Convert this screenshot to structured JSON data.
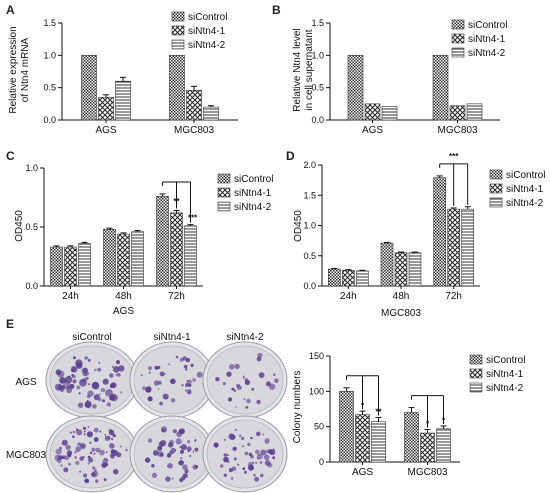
{
  "panels": {
    "A": "A",
    "B": "B",
    "C": "C",
    "D": "D",
    "E": "E"
  },
  "series_names": [
    "siControl",
    "siNtn4-1",
    "siNtn4-2"
  ],
  "colors": {
    "ink": "#111111",
    "dish": "#cfcfd3",
    "colony": "#5a3e8c"
  },
  "plates": {
    "column_labels": [
      "siControl",
      "siNtn4-1",
      "siNtn4-2"
    ],
    "row_labels": [
      "AGS",
      "MGC803"
    ]
  },
  "chart_data": [
    {
      "id": "A",
      "type": "bar",
      "ylabel": "Relative expression of Ntn4 mRNA",
      "ylim": [
        0,
        1.5
      ],
      "yticks": [
        "0.0",
        "0.5",
        "1.0",
        "1.5"
      ],
      "categories": [
        "AGS",
        "MGC803"
      ],
      "series": [
        {
          "name": "siControl",
          "values": [
            1.0,
            1.0
          ],
          "errors": [
            0,
            0
          ]
        },
        {
          "name": "siNtn4-1",
          "values": [
            0.35,
            0.46
          ],
          "errors": [
            0.04,
            0.06
          ]
        },
        {
          "name": "siNtn4-2",
          "values": [
            0.6,
            0.2
          ],
          "errors": [
            0.06,
            0.02
          ]
        }
      ],
      "legend": "top-right"
    },
    {
      "id": "B",
      "type": "bar",
      "ylabel": "Relative Ntn4 level in cell supernatant",
      "ylim": [
        0,
        1.5
      ],
      "yticks": [
        "0.0",
        "0.5",
        "1.0",
        "1.5"
      ],
      "categories": [
        "AGS",
        "MGC803"
      ],
      "series": [
        {
          "name": "siControl",
          "values": [
            1.0,
            1.0
          ],
          "errors": [
            0,
            0
          ]
        },
        {
          "name": "siNtn4-1",
          "values": [
            0.25,
            0.22
          ],
          "errors": [
            0,
            0
          ]
        },
        {
          "name": "siNtn4-2",
          "values": [
            0.21,
            0.25
          ],
          "errors": [
            0,
            0
          ]
        }
      ],
      "legend": "top-right"
    },
    {
      "id": "C",
      "type": "bar",
      "ylabel": "OD450",
      "xlabel": "AGS",
      "ylim": [
        0,
        1.0
      ],
      "yticks": [
        "0.0",
        "0.5",
        "1.0"
      ],
      "categories": [
        "24h",
        "48h",
        "72h"
      ],
      "series": [
        {
          "name": "siControl",
          "values": [
            0.33,
            0.48,
            0.76
          ],
          "errors": [
            0.01,
            0.01,
            0.02
          ]
        },
        {
          "name": "siNtn4-1",
          "values": [
            0.33,
            0.44,
            0.62
          ],
          "errors": [
            0.01,
            0.01,
            0.02
          ]
        },
        {
          "name": "siNtn4-2",
          "values": [
            0.36,
            0.46,
            0.51
          ],
          "errors": [
            0.01,
            0.01,
            0.01
          ]
        }
      ],
      "annotations": [
        "**",
        "***"
      ],
      "legend": "top-right"
    },
    {
      "id": "D",
      "type": "bar",
      "ylabel": "OD450",
      "xlabel": "MGC803",
      "ylim": [
        0,
        2.0
      ],
      "yticks": [
        "0.0",
        "0.5",
        "1.0",
        "1.5",
        "2.0"
      ],
      "categories": [
        "24h",
        "48h",
        "72h"
      ],
      "series": [
        {
          "name": "siControl",
          "values": [
            0.28,
            0.71,
            1.79
          ],
          "errors": [
            0.01,
            0.01,
            0.03
          ]
        },
        {
          "name": "siNtn4-1",
          "values": [
            0.26,
            0.55,
            1.27
          ],
          "errors": [
            0.01,
            0.01,
            0.02
          ]
        },
        {
          "name": "siNtn4-2",
          "values": [
            0.25,
            0.55,
            1.27
          ],
          "errors": [
            0.01,
            0.01,
            0.04
          ]
        }
      ],
      "annotations": [
        "***"
      ],
      "legend": "top-right"
    },
    {
      "id": "E",
      "type": "bar",
      "ylabel": "Colony numbers",
      "ylim": [
        0,
        150
      ],
      "yticks": [
        "0",
        "50",
        "100",
        "150"
      ],
      "categories": [
        "AGS",
        "MGC803"
      ],
      "series": [
        {
          "name": "siControl",
          "values": [
            100,
            70
          ],
          "errors": [
            5,
            7
          ]
        },
        {
          "name": "siNtn4-1",
          "values": [
            67,
            41
          ],
          "errors": [
            5,
            5
          ]
        },
        {
          "name": "siNtn4-2",
          "values": [
            57,
            47
          ],
          "errors": [
            6,
            4
          ]
        }
      ],
      "annotations": [
        "*",
        "**",
        "*",
        "*"
      ],
      "legend": "top-right"
    }
  ]
}
